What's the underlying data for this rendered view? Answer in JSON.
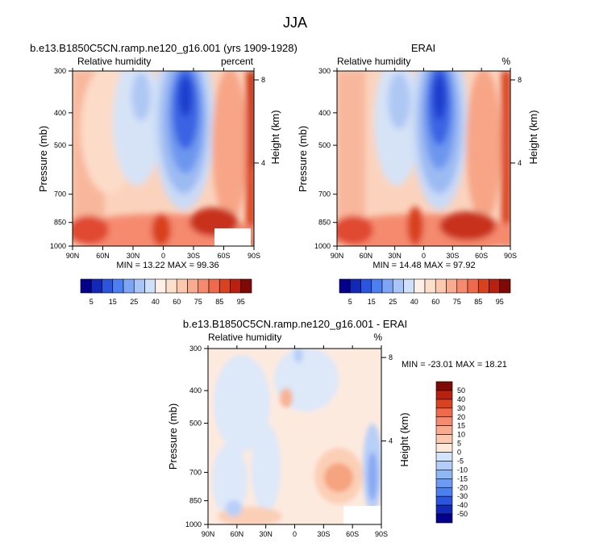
{
  "page": {
    "title": "JJA"
  },
  "colors": {
    "panel_bg": "#fde5d5",
    "blues": [
      "#05008c",
      "#0f1db3",
      "#1b3dd6",
      "#2e5bea",
      "#4b7ff2",
      "#6c9bf5",
      "#8fb6f7",
      "#b2cdf8",
      "#d3e3fa",
      "#ecf2fb"
    ],
    "reds": [
      "#fef0e6",
      "#fde0cc",
      "#fcc8ae",
      "#f9ab8f",
      "#f58a6e",
      "#ef6a4c",
      "#e04a30",
      "#c8301c",
      "#a6180e",
      "#7f0905"
    ]
  },
  "chart_data": [
    {
      "id": "model",
      "type": "heatmap",
      "title": "b.e13.B1850C5CN.ramp.ne120_g16.001 (yrs 1909-1928)",
      "variable": "Relative humidity",
      "units": "percent",
      "ylabel": "Pressure (mb)",
      "y2label": "Height (km)",
      "x_ticks": [
        "90N",
        "60N",
        "30N",
        "0",
        "30S",
        "60S",
        "90S"
      ],
      "y_ticks": [
        "300",
        "400",
        "500",
        "700",
        "850",
        "1000"
      ],
      "y2_ticks": [
        "8",
        "4"
      ],
      "ylim": [
        1000,
        300
      ],
      "y_scale": "log",
      "stats": "MIN =  13.22   MAX =  99.36"
    },
    {
      "id": "obs",
      "type": "heatmap",
      "title": "ERAI",
      "variable": "Relative humidity",
      "units": "%",
      "ylabel": "Pressure (mb)",
      "y2label": "Height (km)",
      "x_ticks": [
        "90N",
        "60N",
        "30N",
        "0",
        "30S",
        "60S",
        "90S"
      ],
      "y_ticks": [
        "300",
        "400",
        "500",
        "700",
        "850",
        "1000"
      ],
      "y2_ticks": [
        "8",
        "4"
      ],
      "ylim": [
        1000,
        300
      ],
      "y_scale": "log",
      "stats": "MIN =  14.48   MAX =  97.92"
    },
    {
      "id": "diff",
      "type": "heatmap",
      "title": "b.e13.B1850C5CN.ramp.ne120_g16.001 - ERAI",
      "variable": "Relative humidity",
      "units": "%",
      "ylabel": "Pressure (mb)",
      "y2label": "Height (km)",
      "x_ticks": [
        "90N",
        "60N",
        "30N",
        "0",
        "30S",
        "60S",
        "90S"
      ],
      "y_ticks": [
        "300",
        "400",
        "500",
        "700",
        "850",
        "1000"
      ],
      "y2_ticks": [
        "8",
        "4"
      ],
      "ylim": [
        1000,
        300
      ],
      "y_scale": "log",
      "stats": "MIN = -23.01   MAX =  18.21"
    }
  ],
  "colorbar_abs": {
    "labels": [
      "5",
      "15",
      "25",
      "40",
      "60",
      "75",
      "85",
      "95"
    ]
  },
  "colorbar_diff": {
    "labels": [
      "50",
      "40",
      "30",
      "20",
      "15",
      "10",
      "5",
      "0",
      "-5",
      "-10",
      "-15",
      "-20",
      "-30",
      "-40",
      "-50"
    ]
  }
}
